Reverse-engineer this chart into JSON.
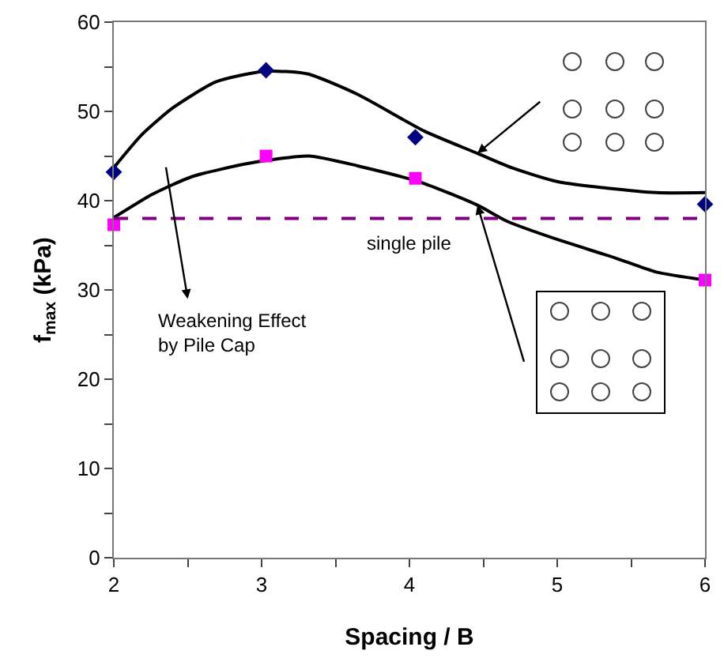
{
  "chart_data": {
    "type": "scatter",
    "xlabel": "Spacing / B",
    "ylabel": "f$_{max}$ (kPa)",
    "xlim": [
      2,
      6
    ],
    "ylim": [
      0,
      60
    ],
    "xticks": [
      2,
      {
        "value": 2.5,
        "label": null
      },
      3,
      {
        "value": 3.5,
        "label": null
      },
      4,
      {
        "value": 4.5,
        "label": null
      },
      5,
      {
        "value": 5.5,
        "label": null
      },
      6
    ],
    "yticks": [
      0,
      {
        "value": 5,
        "label": null
      },
      10,
      {
        "value": 15,
        "label": null
      },
      20,
      {
        "value": 25,
        "label": null
      },
      30,
      {
        "value": 35,
        "label": null
      },
      40,
      {
        "value": 45,
        "label": null
      },
      50,
      {
        "value": 55,
        "label": null
      },
      60
    ],
    "grid": false,
    "series": [
      {
        "type": "line",
        "color": "#000000",
        "marker": "none",
        "line_style": "solid",
        "x": [
          2,
          2.19,
          2.4,
          2.69,
          3.02,
          3.31,
          3.65,
          4.1,
          4.46,
          4.69,
          5.01,
          5.67,
          6
        ],
        "values": [
          43.7,
          47.4,
          50.4,
          53.3,
          54.5,
          54.2,
          51.9,
          47.8,
          45.3,
          43.7,
          42.1,
          40.9,
          40.9
        ]
      },
      {
        "type": "line",
        "color": "#000000",
        "marker": "none",
        "line_style": "solid",
        "x": [
          2,
          2.26,
          2.53,
          2.92,
          3.32,
          3.65,
          4.07,
          4.46,
          4.66,
          5.01,
          5.39,
          5.67,
          6
        ],
        "values": [
          38.1,
          40.7,
          42.7,
          44.2,
          45,
          43.9,
          42.1,
          39.5,
          37.7,
          35.6,
          33.6,
          32,
          31.1
        ]
      },
      {
        "color": "#000080",
        "marker": "diamond",
        "x": [
          2,
          3.03,
          4.04,
          6
        ],
        "values": [
          43.2,
          54.6,
          47.1,
          39.6
        ]
      },
      {
        "color": "#ff00ff",
        "marker": "square",
        "x": [
          2,
          3.03,
          4.04,
          6
        ],
        "values": [
          37.3,
          45,
          42.5,
          31.1
        ]
      }
    ],
    "ref_lines": [
      {
        "axis": "y",
        "value": 38,
        "label": "single pile",
        "color": "#800080",
        "line_style": "dashed"
      }
    ],
    "annotations": [
      "Weakening Effect\nby Pile Cap"
    ]
  }
}
